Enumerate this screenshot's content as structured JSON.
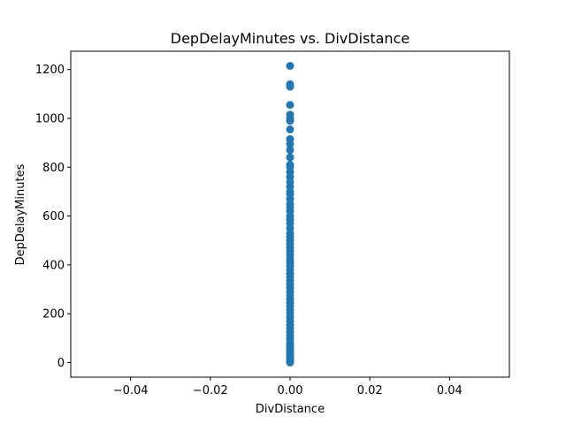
{
  "chart_data": {
    "type": "scatter",
    "title": "DepDelayMinutes vs. DivDistance",
    "xlabel": "DivDistance",
    "ylabel": "DepDelayMinutes",
    "xlim": [
      -0.055,
      0.055
    ],
    "ylim": [
      -60,
      1275
    ],
    "xticks": [
      -0.04,
      -0.02,
      0.0,
      0.02,
      0.04
    ],
    "xtick_labels": [
      "−0.04",
      "−0.02",
      "0.00",
      "0.02",
      "0.04"
    ],
    "yticks": [
      0,
      200,
      400,
      600,
      800,
      1000,
      1200
    ],
    "ytick_labels": [
      "0",
      "200",
      "400",
      "600",
      "800",
      "1000",
      "1200"
    ],
    "grid": false,
    "marker_color": "#1f77b4",
    "series": [
      {
        "x": [
          0,
          0,
          0,
          0,
          0,
          0,
          0,
          0,
          0,
          0,
          0,
          0,
          0,
          0,
          0,
          0,
          0,
          0,
          0,
          0,
          0,
          0,
          0,
          0,
          0,
          0,
          0,
          0,
          0,
          0,
          0,
          0,
          0,
          0,
          0,
          0,
          0,
          0,
          0,
          0,
          0,
          0,
          0,
          0,
          0,
          0,
          0,
          0,
          0,
          0,
          0,
          0,
          0,
          0,
          0,
          0,
          0,
          0,
          0,
          0,
          0,
          0,
          0,
          0,
          0,
          0,
          0,
          0,
          0,
          0
        ],
        "y": [
          1215,
          1140,
          1130,
          1055,
          1015,
          1000,
          990,
          955,
          915,
          895,
          870,
          840,
          810,
          800,
          780,
          760,
          740,
          720,
          700,
          690,
          670,
          650,
          635,
          620,
          600,
          585,
          570,
          550,
          530,
          515,
          500,
          485,
          470,
          455,
          440,
          425,
          410,
          395,
          380,
          365,
          350,
          335,
          320,
          305,
          290,
          275,
          260,
          245,
          230,
          215,
          200,
          185,
          170,
          155,
          140,
          125,
          110,
          95,
          80,
          70,
          60,
          50,
          40,
          30,
          25,
          20,
          15,
          10,
          5,
          0
        ]
      }
    ]
  }
}
